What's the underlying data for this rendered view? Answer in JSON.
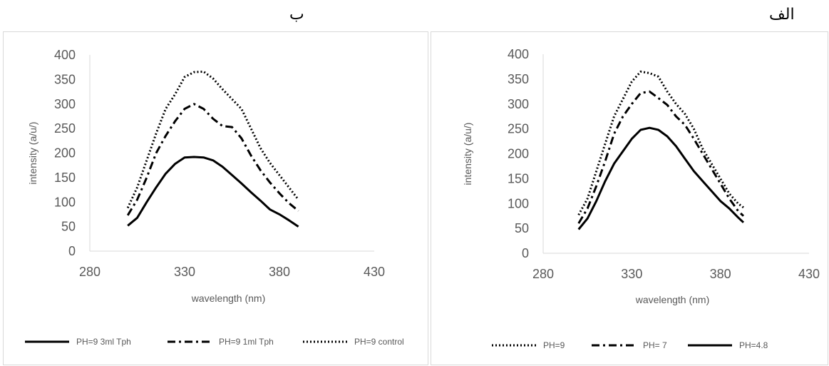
{
  "panels": [
    {
      "title": "ب",
      "chart_data": {
        "type": "line",
        "xlabel": "wavelength (nm)",
        "ylabel": "intensity (a/u/)",
        "xlim": [
          280,
          430
        ],
        "ylim": [
          0,
          400
        ],
        "xticks": [
          280,
          330,
          380,
          430
        ],
        "yticks": [
          0,
          50,
          100,
          150,
          200,
          250,
          300,
          350,
          400
        ],
        "grid": false,
        "legend_position": "bottom",
        "series": [
          {
            "name": "PH=9 3ml Tph",
            "style": "solid",
            "x": [
              300,
              305,
              310,
              315,
              320,
              325,
              330,
              335,
              340,
              345,
              350,
              355,
              360,
              365,
              370,
              375,
              380,
              385,
              390
            ],
            "y": [
              52,
              68,
              100,
              130,
              158,
              178,
              191,
              192,
              191,
              185,
              172,
              155,
              138,
              120,
              103,
              85,
              75,
              63,
              50
            ]
          },
          {
            "name": "PH=9 1ml Tph",
            "style": "dashdot",
            "x": [
              300,
              305,
              310,
              315,
              320,
              325,
              330,
              335,
              340,
              345,
              350,
              355,
              360,
              365,
              370,
              375,
              380,
              385,
              390
            ],
            "y": [
              73,
              105,
              150,
              200,
              235,
              265,
              290,
              300,
              290,
              270,
              255,
              253,
              230,
              195,
              165,
              140,
              118,
              98,
              82
            ]
          },
          {
            "name": "PH=9 control",
            "style": "dotted",
            "x": [
              300,
              305,
              310,
              315,
              320,
              325,
              330,
              335,
              340,
              345,
              350,
              355,
              360,
              365,
              370,
              375,
              380,
              385,
              390
            ],
            "y": [
              88,
              130,
              185,
              240,
              290,
              320,
              355,
              365,
              366,
              352,
              330,
              310,
              290,
              250,
              210,
              180,
              155,
              130,
              105
            ]
          }
        ]
      }
    },
    {
      "title": "الف",
      "chart_data": {
        "type": "line",
        "xlabel": "wavelength (nm)",
        "ylabel": "intensity (a/u/)",
        "xlim": [
          280,
          430
        ],
        "ylim": [
          0,
          400
        ],
        "xticks": [
          280,
          330,
          380,
          430
        ],
        "yticks": [
          0,
          50,
          100,
          150,
          200,
          250,
          300,
          350,
          400
        ],
        "grid": false,
        "legend_position": "bottom",
        "series": [
          {
            "name": "PH=9",
            "style": "dotted",
            "x": [
              300,
              305,
              310,
              315,
              320,
              325,
              330,
              335,
              340,
              345,
              350,
              355,
              360,
              365,
              370,
              375,
              380,
              385,
              390,
              393
            ],
            "y": [
              77,
              110,
              165,
              220,
              275,
              310,
              345,
              365,
              362,
              355,
              325,
              300,
              280,
              250,
              210,
              180,
              150,
              120,
              100,
              92
            ]
          },
          {
            "name": "PH= 7",
            "style": "dashdot",
            "x": [
              300,
              305,
              310,
              315,
              320,
              325,
              330,
              335,
              340,
              345,
              350,
              355,
              360,
              365,
              370,
              375,
              380,
              385,
              390,
              393
            ],
            "y": [
              60,
              90,
              135,
              185,
              240,
              275,
              300,
              322,
              325,
              312,
              298,
              275,
              258,
              230,
              200,
              170,
              140,
              110,
              85,
              75
            ]
          },
          {
            "name": "PH=4.8",
            "style": "solid",
            "x": [
              300,
              305,
              310,
              315,
              320,
              325,
              330,
              335,
              340,
              345,
              350,
              355,
              360,
              365,
              370,
              375,
              380,
              385,
              390,
              393
            ],
            "y": [
              48,
              70,
              105,
              145,
              180,
              205,
              230,
              248,
              252,
              248,
              235,
              215,
              190,
              165,
              145,
              125,
              105,
              90,
              72,
              62
            ]
          }
        ]
      }
    }
  ]
}
